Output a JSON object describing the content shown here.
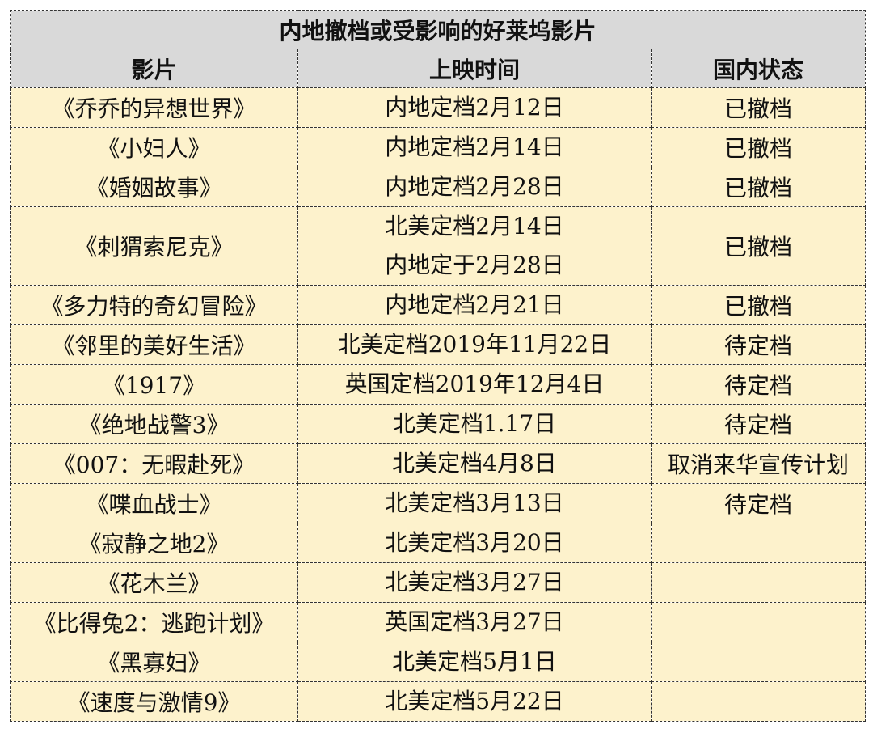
{
  "table": {
    "title": "内地撤档或受影响的好莱坞影片",
    "header": [
      "影片",
      "上映时间",
      "国内状态"
    ],
    "rows": [
      [
        "《乔乔的异想世界》",
        [
          "内地定档2月12日"
        ],
        "已撤档"
      ],
      [
        "《小妇人》",
        [
          "内地定档2月14日"
        ],
        "已撤档"
      ],
      [
        "《婚姻故事》",
        [
          "内地定档2月28日"
        ],
        "已撤档"
      ],
      [
        "《刺猬索尼克》",
        [
          "北美定档2月14日",
          "内地定于2月28日"
        ],
        "已撤档"
      ],
      [
        "《多力特的奇幻冒险》",
        [
          "内地定档2月21日"
        ],
        "已撤档"
      ],
      [
        "《邻里的美好生活》",
        [
          "北美定档2019年11月22日"
        ],
        "待定档"
      ],
      [
        "《1917》",
        [
          "英国定档2019年12月4日"
        ],
        "待定档"
      ],
      [
        "《绝地战警3》",
        [
          "北美定档1.17日"
        ],
        "待定档"
      ],
      [
        "《007：无暇赴死》",
        [
          "北美定档4月8日"
        ],
        "取消来华宣传计划"
      ],
      [
        "《喋血战士》",
        [
          "北美定档3月13日"
        ],
        "待定档"
      ],
      [
        "《寂静之地2》",
        [
          "北美定档3月20日"
        ]
      ],
      [
        "《花木兰》",
        [
          "北美定档3月27日"
        ]
      ],
      [
        "《比得兔2：逃跑计划》",
        [
          "英国定档3月27日"
        ]
      ],
      [
        "《黑寡妇》",
        [
          "北美定档5月1日"
        ]
      ],
      [
        "《速度与激情9》",
        [
          "北美定档5月22日"
        ]
      ]
    ]
  }
}
